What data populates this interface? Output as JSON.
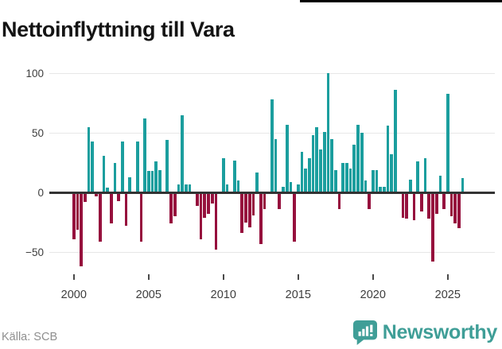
{
  "page": {
    "title": "Nettoinflyttning till Vara"
  },
  "footer": {
    "source": "Källa: SCB",
    "brand": "Newsworthy"
  },
  "chart_data": {
    "type": "bar",
    "title": "Nettoinflyttning till Vara",
    "subtitle": "",
    "xlabel": "",
    "ylabel": "",
    "period": "quarterly",
    "x_start_year": 2000,
    "x_tick_years": [
      2000,
      2005,
      2010,
      2015,
      2020,
      2025
    ],
    "y_ticks": [
      100,
      50,
      0,
      -50
    ],
    "ylim": [
      -70,
      110
    ],
    "grid": "horizontal-only",
    "legend": "none",
    "source": "SCB",
    "colors": {
      "positive": "#1b9e9e",
      "negative": "#96103d",
      "axis": "#333333",
      "grid": "#e7e7e7",
      "tick_label": "#3d3d3d",
      "title": "#141414",
      "source_text": "#8f8f8f",
      "brand_teal": "#3f9e97"
    },
    "values": [
      -38,
      -30,
      -61,
      -7,
      55,
      43,
      -2,
      -40,
      31,
      4,
      -25,
      25,
      -6,
      43,
      -27,
      13,
      0,
      43,
      -40,
      62,
      18,
      18,
      26,
      19,
      0,
      44,
      -25,
      -19,
      7,
      65,
      7,
      7,
      0,
      -10,
      -38,
      -20,
      -17,
      -8,
      -47,
      0,
      29,
      7,
      0,
      27,
      10,
      -33,
      -24,
      -28,
      -18,
      17,
      -42,
      -13,
      0,
      78,
      45,
      -13,
      5,
      57,
      9,
      -40,
      7,
      34,
      20,
      29,
      48,
      55,
      36,
      51,
      100,
      45,
      19,
      -13,
      25,
      25,
      20,
      40,
      57,
      50,
      10,
      -13,
      19,
      19,
      5,
      5,
      56,
      32,
      86,
      0,
      -20,
      -21,
      11,
      -22,
      26,
      -15,
      29,
      -21,
      -57,
      -17,
      14,
      -13,
      83,
      -19,
      -25,
      -29,
      12
    ]
  }
}
